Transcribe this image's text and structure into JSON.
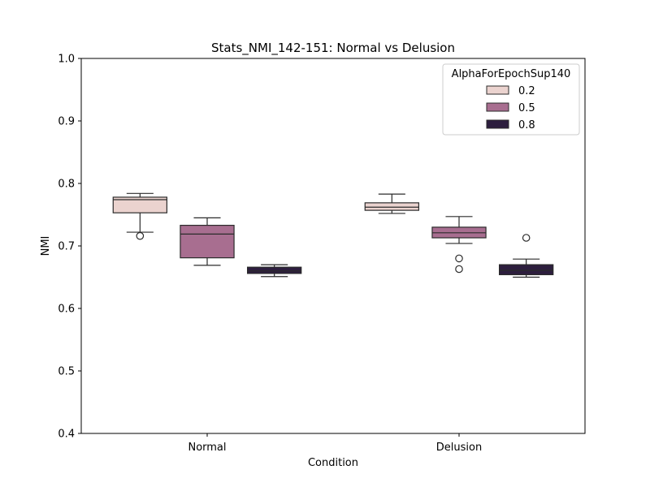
{
  "chart_data": {
    "type": "box",
    "title": "Stats_NMI_142-151: Normal vs Delusion",
    "xlabel": "Condition",
    "ylabel": "NMI",
    "ylim": [
      0.4,
      1.0
    ],
    "yticks": [
      "0.4",
      "0.5",
      "0.6",
      "0.7",
      "0.8",
      "0.9",
      "1.0"
    ],
    "categories": [
      "Normal",
      "Delusion"
    ],
    "legend": {
      "title": "AlphaForEpochSup140",
      "placement": "top-right"
    },
    "series": [
      {
        "name": "0.2",
        "color": "#ebd3cf",
        "boxes": [
          {
            "whisker_low": 0.722,
            "q1": 0.753,
            "median": 0.774,
            "q3": 0.778,
            "whisker_high": 0.784,
            "outliers": [
              0.716
            ]
          },
          {
            "whisker_low": 0.752,
            "q1": 0.757,
            "median": 0.762,
            "q3": 0.769,
            "whisker_high": 0.783,
            "outliers": []
          }
        ]
      },
      {
        "name": "0.5",
        "color": "#a86e90",
        "boxes": [
          {
            "whisker_low": 0.669,
            "q1": 0.681,
            "median": 0.719,
            "q3": 0.733,
            "whisker_high": 0.745,
            "outliers": []
          },
          {
            "whisker_low": 0.704,
            "q1": 0.713,
            "median": 0.721,
            "q3": 0.73,
            "whisker_high": 0.747,
            "outliers": [
              0.68,
              0.663
            ]
          }
        ]
      },
      {
        "name": "0.8",
        "color": "#2d1e3e",
        "boxes": [
          {
            "whisker_low": 0.651,
            "q1": 0.656,
            "median": 0.66,
            "q3": 0.666,
            "whisker_high": 0.67,
            "outliers": []
          },
          {
            "whisker_low": 0.65,
            "q1": 0.654,
            "median": 0.661,
            "q3": 0.67,
            "whisker_high": 0.679,
            "outliers": [
              0.713
            ]
          }
        ]
      }
    ]
  }
}
